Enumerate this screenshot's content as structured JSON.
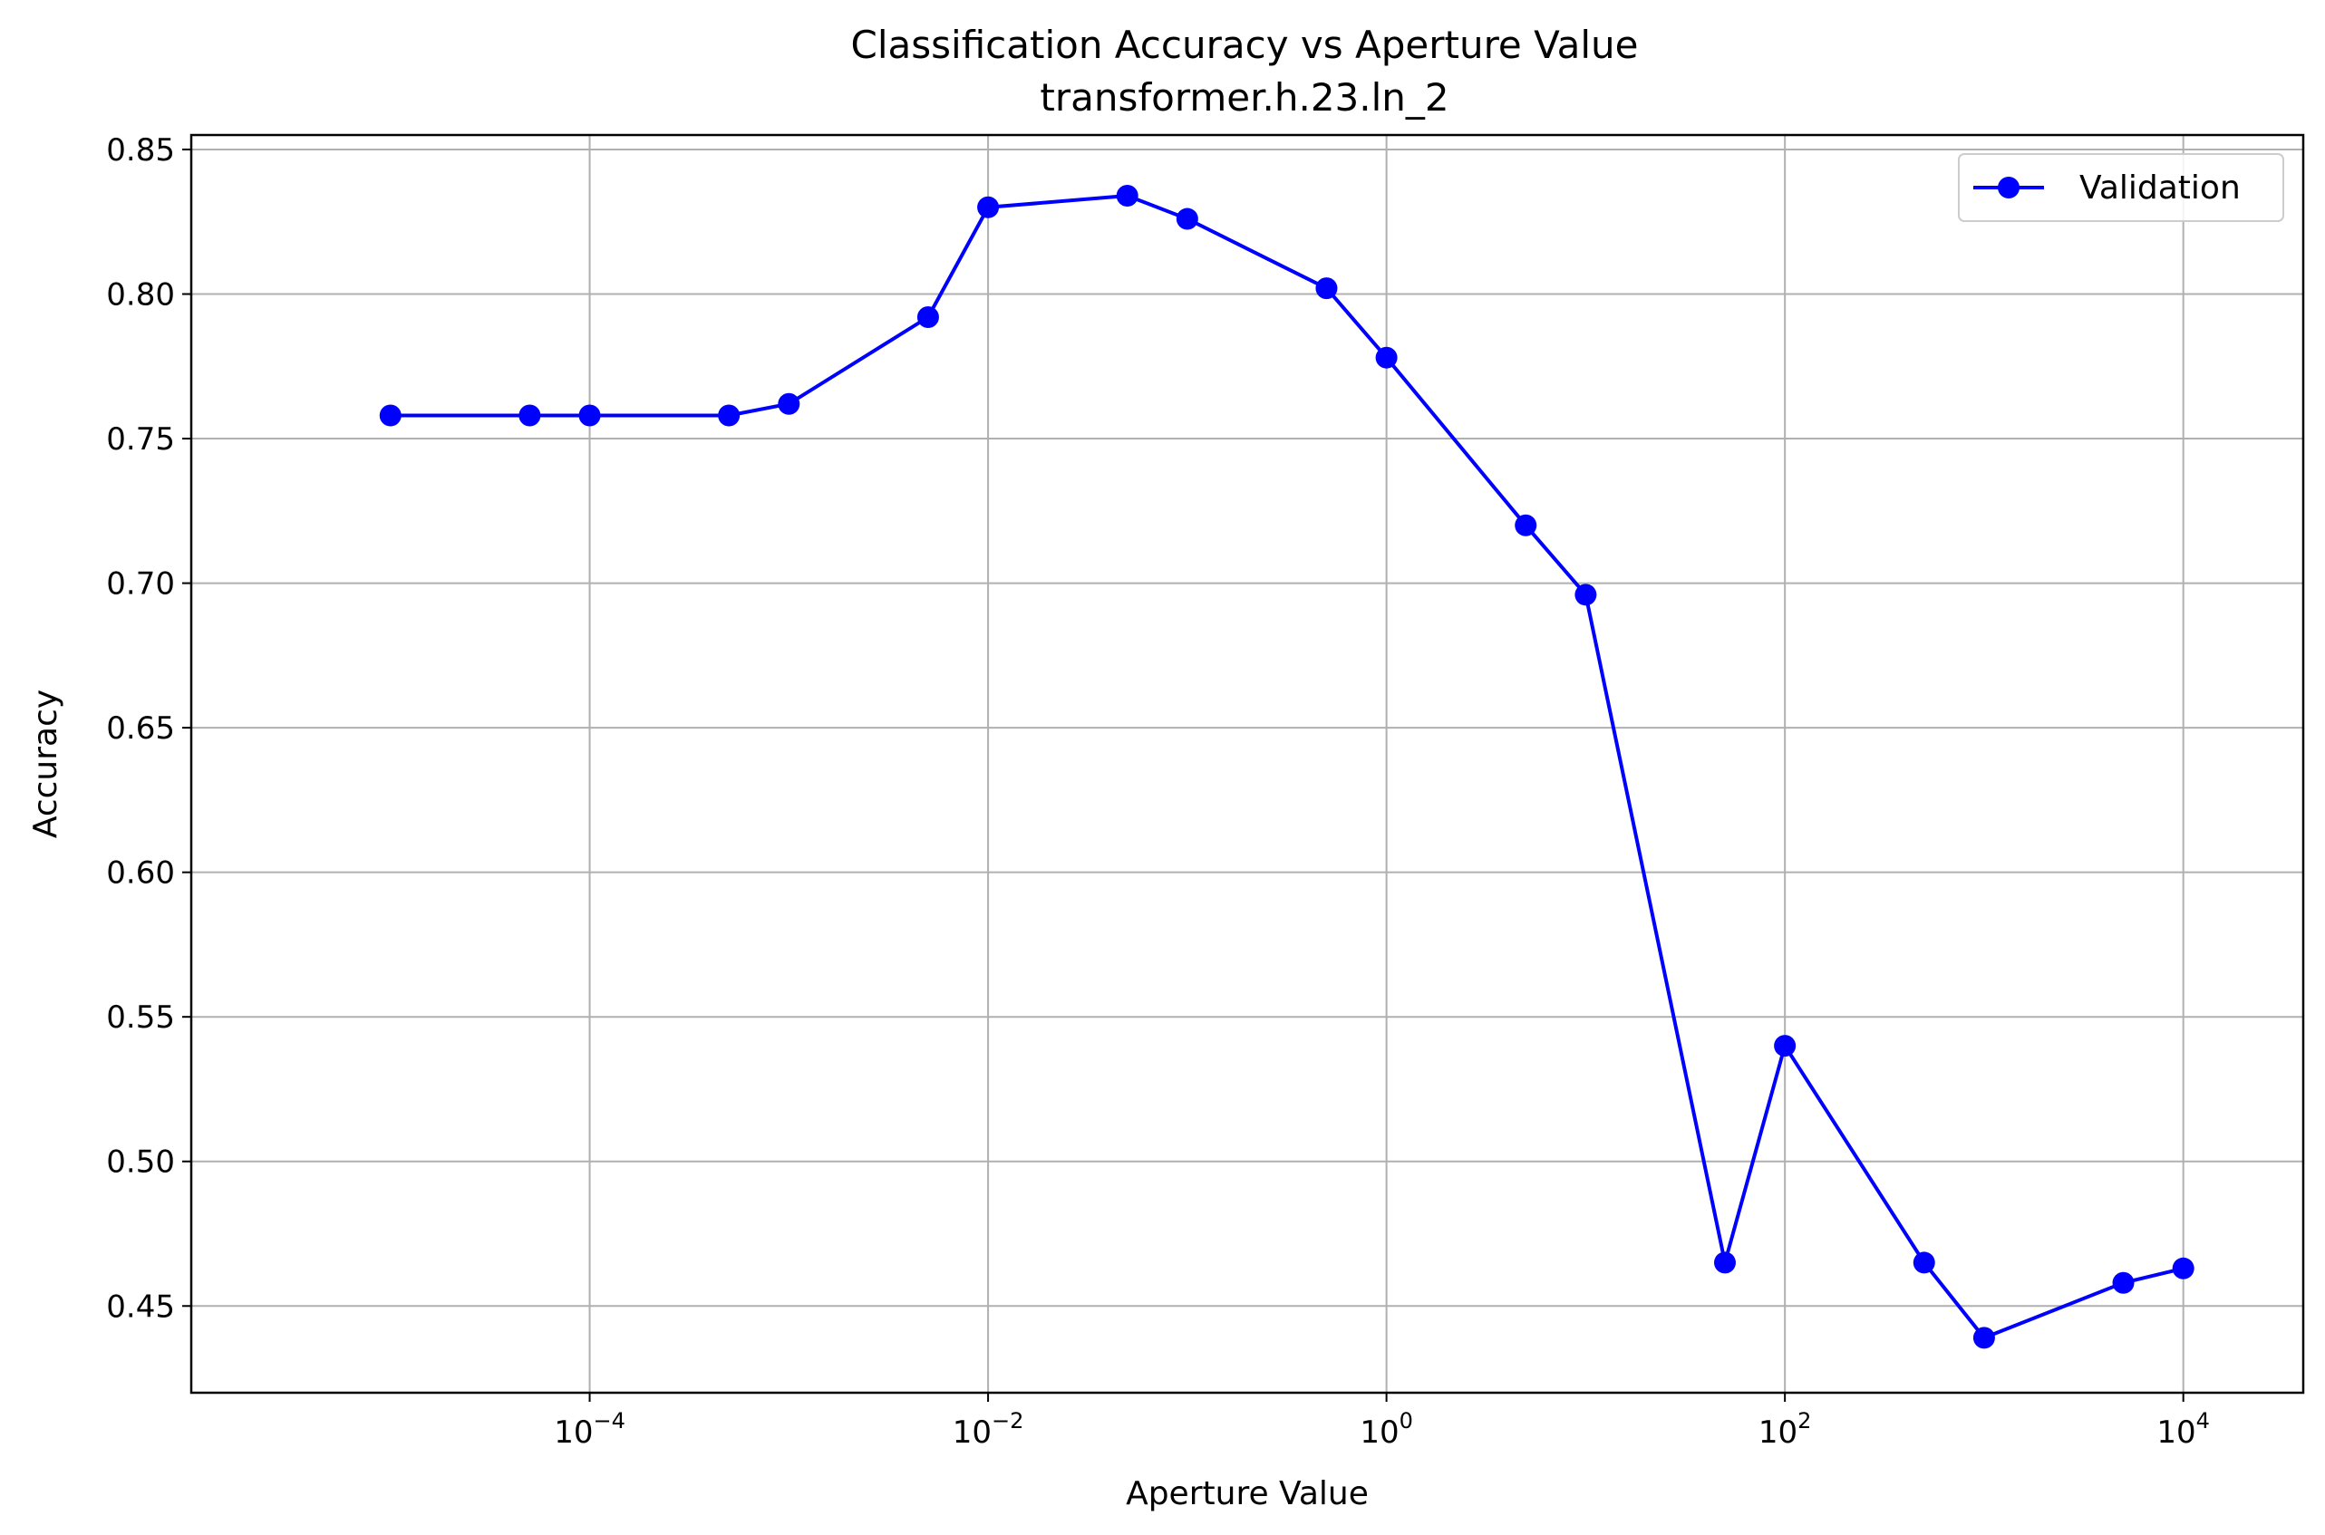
{
  "chart_data": {
    "type": "line",
    "title": "Classification Accuracy vs Aperture Value",
    "subtitle": "transformer.h.23.ln_2",
    "xlabel": "Aperture Value",
    "ylabel": "Accuracy",
    "xscale": "log",
    "xlim": [
      1e-06,
      40000
    ],
    "ylim": [
      0.42,
      0.855
    ],
    "grid": true,
    "legend_position": "top-right",
    "xticks": [
      {
        "base": "10",
        "exp": "−4",
        "value": 0.0001
      },
      {
        "base": "10",
        "exp": "−2",
        "value": 0.01
      },
      {
        "base": "10",
        "exp": "0",
        "value": 1
      },
      {
        "base": "10",
        "exp": "2",
        "value": 100
      },
      {
        "base": "10",
        "exp": "4",
        "value": 10000
      }
    ],
    "yticks": [
      "0.45",
      "0.50",
      "0.55",
      "0.60",
      "0.65",
      "0.70",
      "0.75",
      "0.80",
      "0.85"
    ],
    "series": [
      {
        "name": "Validation",
        "color": "#0000ff",
        "marker": "circle",
        "x": [
          1e-05,
          5e-05,
          0.0001,
          0.0005,
          0.001,
          0.005,
          0.01,
          0.05,
          0.1,
          0.5,
          1,
          5,
          10,
          50,
          100,
          500,
          1000,
          5000,
          10000
        ],
        "y": [
          0.758,
          0.758,
          0.758,
          0.758,
          0.762,
          0.792,
          0.83,
          0.834,
          0.826,
          0.802,
          0.778,
          0.72,
          0.696,
          0.465,
          0.54,
          0.465,
          0.439,
          0.458,
          0.463
        ]
      }
    ]
  }
}
